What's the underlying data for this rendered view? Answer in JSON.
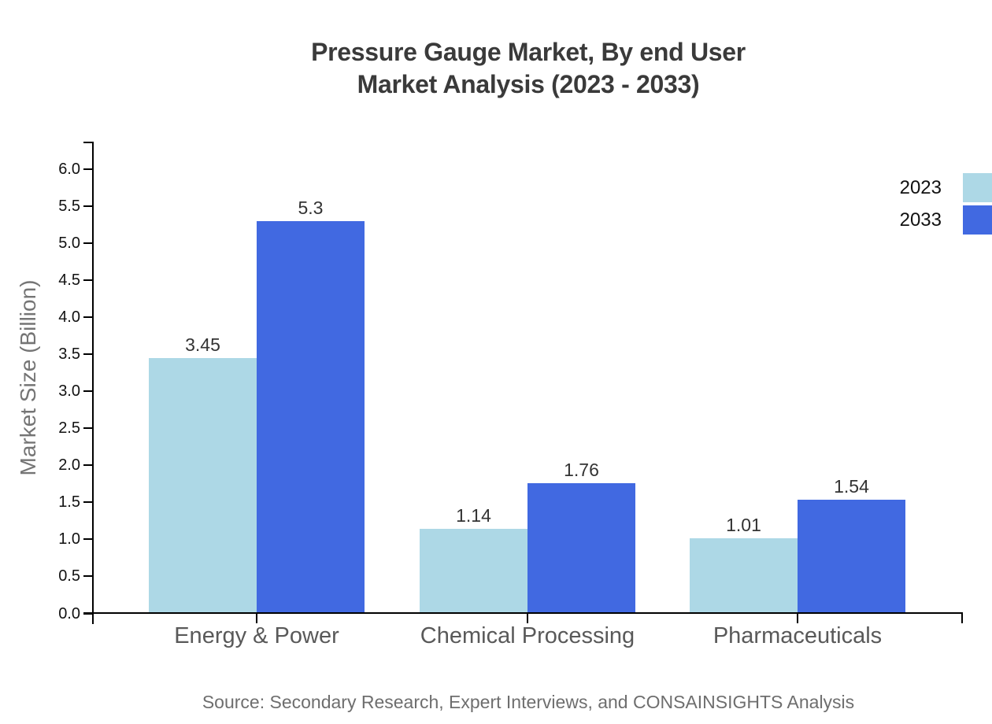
{
  "title": {
    "line1": "Pressure Gauge Market, By end User",
    "line2": "Market Analysis (2023 - 2033)"
  },
  "source": "Source: Secondary Research, Expert Interviews, and CONSAINSIGHTS Analysis",
  "colors": {
    "series_2023": "#ADD8E6",
    "series_2033": "#4169E1",
    "axis": "#000000",
    "title_text": "#3A3A3A",
    "tick_text": "#111111",
    "category_text": "#595959",
    "axis_label_text": "#757575",
    "value_label_text": "#333333",
    "source_text": "#6E6E6E"
  },
  "chart_data": {
    "type": "bar",
    "title": "Pressure Gauge Market, By end User Market Analysis (2023 - 2033)",
    "categories": [
      "Energy & Power",
      "Chemical Processing",
      "Pharmaceuticals"
    ],
    "series": [
      {
        "name": "2023",
        "color": "#ADD8E6",
        "values": [
          3.45,
          1.14,
          1.01
        ]
      },
      {
        "name": "2033",
        "color": "#4169E1",
        "values": [
          5.3,
          1.76,
          1.54
        ]
      }
    ],
    "xlabel": "",
    "ylabel": "Market Size (Billion)",
    "ylim": [
      0,
      6.4
    ],
    "yticks": [
      0.0,
      0.5,
      1.0,
      1.5,
      2.0,
      2.5,
      3.0,
      3.5,
      4.0,
      4.5,
      5.0,
      5.5,
      6.0
    ],
    "ytick_format": "one-decimal",
    "grid": false,
    "data_labels": true,
    "legend_position": "top-right"
  }
}
